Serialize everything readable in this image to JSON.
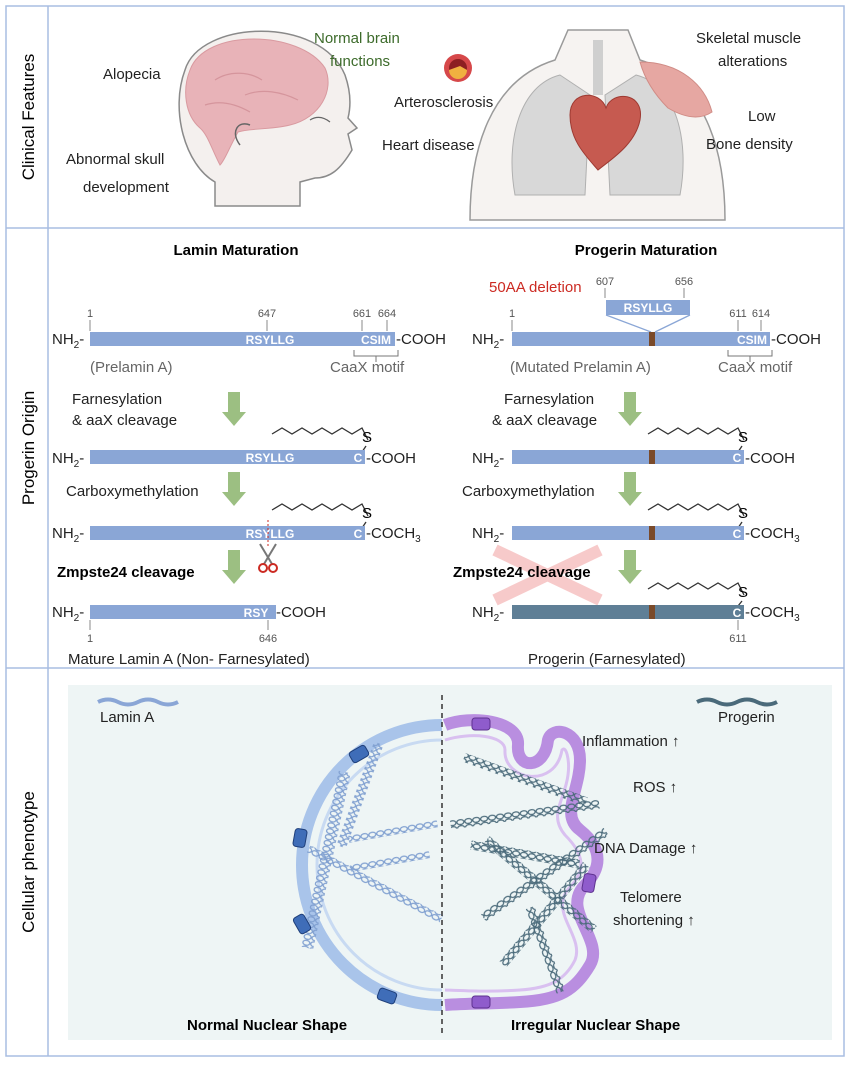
{
  "sections": {
    "clinical": "Clinical Features",
    "origin": "Progerin Origin",
    "phenotype": "Cellular phenotype"
  },
  "clinical": {
    "alopecia": "Alopecia",
    "skull_1": "Abnormal skull",
    "skull_2": "development",
    "brain_1": "Normal brain",
    "brain_2": "functions",
    "arterio": "Arterosclerosis",
    "heart": "Heart disease",
    "muscle_1": "Skeletal muscle",
    "muscle_2": "alterations",
    "bone_1": "Low",
    "bone_2": "Bone density"
  },
  "lamin": {
    "title": "Lamin Maturation",
    "pos_1": "1",
    "pos_647": "647",
    "pos_661": "661",
    "pos_664": "664",
    "nh2": "NH",
    "sub2": "2",
    "rsyllg": "RSYLLG",
    "csim": "CSIM",
    "cooh": "-COOH",
    "prelamin": "(Prelamin A)",
    "caax": "CaaX motif",
    "farn_1": "Farnesylation",
    "farn_2": "& aaX cleavage",
    "c": "C",
    "s": "S",
    "carboxy": "Carboxymethylation",
    "coch": "-COCH",
    "sub3": "3",
    "zmp": "Zmpste24 cleavage",
    "rsy": "RSY",
    "pos_646": "646",
    "mature": "Mature Lamin A (Non- Farnesylated)"
  },
  "progerin": {
    "title": "Progerin Maturation",
    "deletion": "50AA deletion",
    "pos_607": "607",
    "pos_656": "656",
    "pos_1": "1",
    "pos_611": "611",
    "pos_614": "614",
    "rsyllg": "RSYLLG",
    "csim": "CSIM",
    "mutated": "(Mutated Prelamin A)",
    "caax": "CaaX motif",
    "farn_1": "Farnesylation",
    "farn_2": "& aaX cleavage",
    "carboxy": "Carboxymethylation",
    "zmp": "Zmpste24 cleavage",
    "pos_611b": "611",
    "final": "Progerin (Farnesylated)"
  },
  "phenotype": {
    "lamin_a": "Lamin A",
    "progerin": "Progerin",
    "inflammation": "Inflammation ↑",
    "ros": "ROS ↑",
    "dna": "DNA Damage ↑",
    "telomere_1": "Telomere",
    "telomere_2": "shortening ↑",
    "normal": "Normal Nuclear Shape",
    "irregular": "Irregular Nuclear Shape"
  },
  "colors": {
    "border": "#a9bde2",
    "bar": "#8aa6d6",
    "bar_dark": "#5f7f96",
    "mutation": "#7a4a2a",
    "arrow": "#9cbf82",
    "green_text": "#3d6b2b",
    "red_text": "#cc2a22",
    "panel_bg": "#eef5f5",
    "progerin_membrane": "#b98ee0"
  }
}
